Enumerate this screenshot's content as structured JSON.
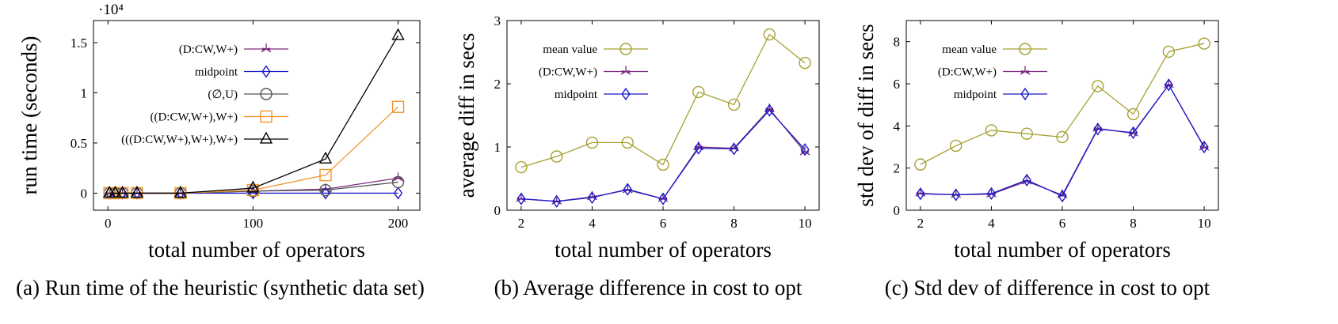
{
  "charts": [
    {
      "id": "a",
      "caption": "(a) Run time of the heuristic (synthetic data set)",
      "chart_data": {
        "type": "line",
        "title": "",
        "xlabel": "total number of operators",
        "ylabel": "run time (seconds)",
        "y_multiplier": "·10⁴",
        "xlim": [
          -10,
          215
        ],
        "ylim": [
          -0.17,
          1.72
        ],
        "xticks": [
          0,
          100,
          200
        ],
        "xtick_labels": [
          "0",
          "100",
          "200"
        ],
        "yticks": [
          0,
          0.5,
          1,
          1.5
        ],
        "ytick_labels": [
          "0",
          "0.5",
          "1",
          "1.5"
        ],
        "legend_position": "top-left",
        "series": [
          {
            "name": "(D:CW,W+)",
            "color": "#7b2d7e",
            "marker": "star",
            "x": [
              1,
              5,
              10,
              20,
              50,
              100,
              150,
              200
            ],
            "y": [
              0,
              0,
              0,
              0,
              0,
              0.02,
              0.04,
              0.15
            ]
          },
          {
            "name": "midpoint",
            "color": "#1a1acc",
            "marker": "diamond",
            "x": [
              1,
              5,
              10,
              20,
              50,
              100,
              150,
              200
            ],
            "y": [
              0,
              0,
              0,
              0,
              0,
              0,
              0,
              0
            ]
          },
          {
            "name": "(∅,U)",
            "color": "#555555",
            "marker": "circle",
            "x": [
              1,
              5,
              10,
              20,
              50,
              100,
              150,
              200
            ],
            "y": [
              0,
              0,
              0,
              0,
              0,
              0.02,
              0.03,
              0.11
            ]
          },
          {
            "name": "((D:CW,W+),W+)",
            "color": "#f0952a",
            "marker": "square",
            "x": [
              1,
              5,
              10,
              20,
              50,
              100,
              150,
              200
            ],
            "y": [
              0,
              0,
              0,
              0,
              0,
              0.03,
              0.18,
              0.86
            ]
          },
          {
            "name": "(((D:CW,W+),W+),W+)",
            "color": "#000000",
            "marker": "triangle",
            "x": [
              1,
              5,
              10,
              20,
              50,
              100,
              150,
              200
            ],
            "y": [
              0,
              0,
              0,
              0,
              0,
              0.05,
              0.34,
              1.57
            ]
          }
        ]
      }
    },
    {
      "id": "b",
      "caption": "(b) Average difference in cost to opt",
      "chart_data": {
        "type": "line",
        "title": "",
        "xlabel": "total number of operators",
        "ylabel": "average diff in secs",
        "xlim": [
          1.6,
          10.4
        ],
        "ylim": [
          0,
          3
        ],
        "xticks": [
          2,
          4,
          6,
          8,
          10
        ],
        "xtick_labels": [
          "2",
          "4",
          "6",
          "8",
          "10"
        ],
        "yticks": [
          0,
          1,
          2,
          3
        ],
        "ytick_labels": [
          "0",
          "1",
          "2",
          "3"
        ],
        "legend_position": "top-left",
        "series": [
          {
            "name": "mean value",
            "color": "#a8a032",
            "marker": "circle",
            "x": [
              2,
              3,
              4,
              5,
              6,
              7,
              8,
              9,
              10
            ],
            "y": [
              0.68,
              0.85,
              1.07,
              1.07,
              0.72,
              1.87,
              1.67,
              2.78,
              2.33
            ]
          },
          {
            "name": "(D:CW,W+)",
            "color": "#7b2d7e",
            "marker": "star",
            "x": [
              2,
              3,
              4,
              5,
              6,
              7,
              8,
              9,
              10
            ],
            "y": [
              0.18,
              0.14,
              0.21,
              0.32,
              0.18,
              1.0,
              0.98,
              1.6,
              0.92
            ]
          },
          {
            "name": "midpoint",
            "color": "#1a1acc",
            "marker": "diamond",
            "x": [
              2,
              3,
              4,
              5,
              6,
              7,
              8,
              9,
              10
            ],
            "y": [
              0.18,
              0.14,
              0.2,
              0.33,
              0.18,
              0.98,
              0.97,
              1.58,
              0.96
            ]
          }
        ]
      }
    },
    {
      "id": "c",
      "caption": "(c) Std dev of difference in cost to opt",
      "chart_data": {
        "type": "line",
        "title": "",
        "xlabel": "total number of operators",
        "ylabel": "std dev of diff in secs",
        "xlim": [
          1.6,
          10.4
        ],
        "ylim": [
          0,
          9
        ],
        "xticks": [
          2,
          4,
          6,
          8,
          10
        ],
        "xtick_labels": [
          "2",
          "4",
          "6",
          "8",
          "10"
        ],
        "yticks": [
          0,
          2,
          4,
          6,
          8
        ],
        "ytick_labels": [
          "0",
          "2",
          "4",
          "6",
          "8"
        ],
        "legend_position": "top-left",
        "series": [
          {
            "name": "mean value",
            "color": "#a8a032",
            "marker": "circle",
            "x": [
              2,
              3,
              4,
              5,
              6,
              7,
              8,
              9,
              10
            ],
            "y": [
              2.17,
              3.06,
              3.79,
              3.63,
              3.47,
              5.89,
              4.56,
              7.52,
              7.91
            ]
          },
          {
            "name": "(D:CW,W+)",
            "color": "#7b2d7e",
            "marker": "star",
            "x": [
              2,
              3,
              4,
              5,
              6,
              7,
              8,
              9,
              10
            ],
            "y": [
              0.8,
              0.73,
              0.76,
              1.37,
              0.72,
              3.88,
              3.65,
              5.95,
              2.98
            ]
          },
          {
            "name": "midpoint",
            "color": "#1a1acc",
            "marker": "diamond",
            "x": [
              2,
              3,
              4,
              5,
              6,
              7,
              8,
              9,
              10
            ],
            "y": [
              0.78,
              0.73,
              0.79,
              1.43,
              0.67,
              3.85,
              3.68,
              5.95,
              3.0
            ]
          }
        ]
      }
    }
  ]
}
